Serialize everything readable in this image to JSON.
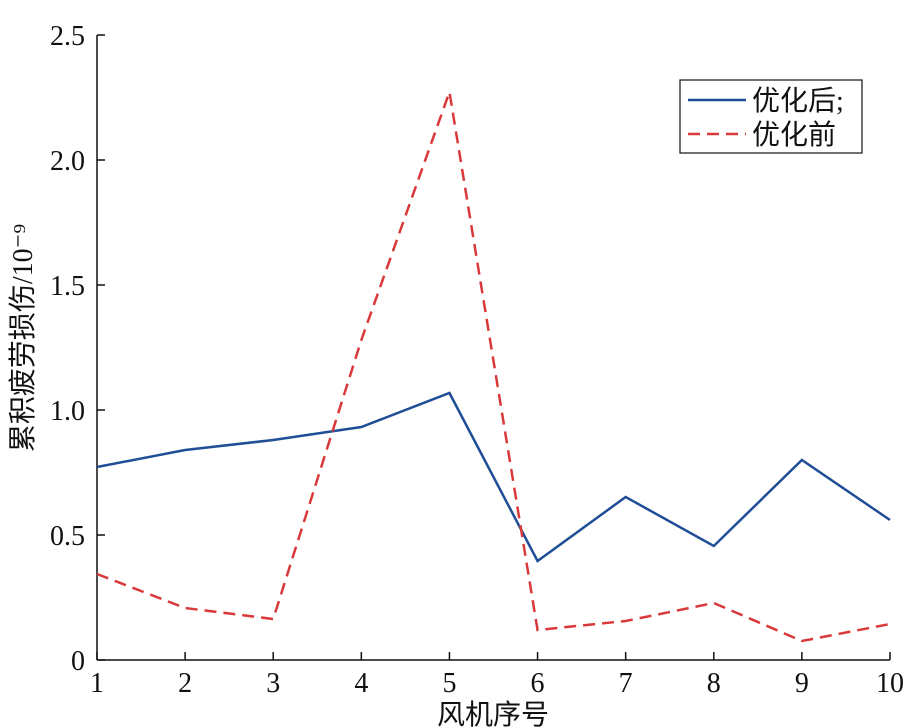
{
  "chart_data": {
    "type": "line",
    "xlabel": "风机序号",
    "ylabel": "累积疲劳损伤/10⁻⁹",
    "x": [
      1,
      2,
      3,
      4,
      5,
      6,
      7,
      8,
      9,
      10
    ],
    "xlim": [
      1,
      10
    ],
    "xticks": [
      1,
      2,
      3,
      4,
      5,
      6,
      7,
      8,
      9,
      10
    ],
    "ylim": [
      0,
      2.5
    ],
    "yticks": [
      0,
      0.5,
      {
        "value": 1,
        "label": "1.0"
      },
      1.5,
      {
        "value": 2,
        "label": "2.0"
      },
      2.5
    ],
    "legend": "upper right",
    "series": [
      {
        "name": "优化后;",
        "color": "#1f4e96",
        "dash": "solid",
        "values": [
          0.772,
          0.84,
          0.88,
          0.932,
          1.068,
          0.396,
          0.652,
          0.456,
          0.8,
          0.56
        ]
      },
      {
        "name": "优化前",
        "color": "#d9393b",
        "dash": "dashed",
        "values": [
          0.344,
          0.208,
          0.164,
          1.28,
          2.272,
          0.12,
          0.156,
          0.228,
          0.076,
          0.144
        ]
      }
    ]
  }
}
